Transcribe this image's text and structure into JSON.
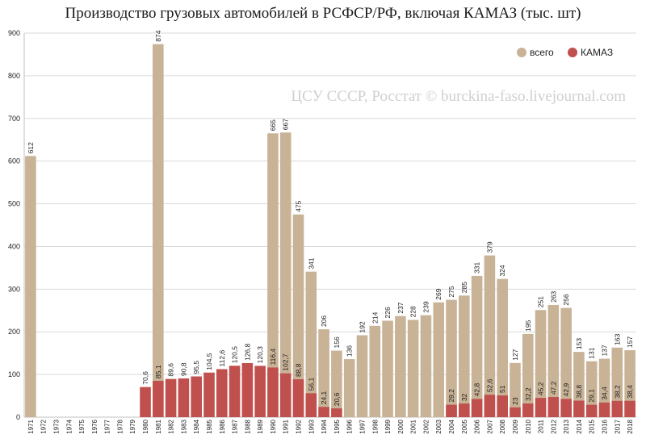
{
  "title": "Производство грузовых автомобилей в РСФСР/РФ, включая КАМАЗ (тыс. шт)",
  "watermark": "ЦСУ СССР, Росстат © burckina-faso.livejournal.com",
  "chart_data": {
    "type": "bar",
    "ylim": [
      0,
      900
    ],
    "yticks": [
      0,
      100,
      200,
      300,
      400,
      500,
      600,
      700,
      800,
      900
    ],
    "grid": true,
    "legend_position": "top-right",
    "categories": [
      "1971",
      "1972",
      "1973",
      "1974",
      "1975",
      "1976",
      "1977",
      "1978",
      "1979",
      "1980",
      "1981",
      "1982",
      "1983",
      "1984",
      "1985",
      "1986",
      "1987",
      "1988",
      "1989",
      "1990",
      "1991",
      "1992",
      "1993",
      "1994",
      "1995",
      "1996",
      "1997",
      "1998",
      "1999",
      "2000",
      "2001",
      "2002",
      "2003",
      "2004",
      "2005",
      "2006",
      "2007",
      "2008",
      "2009",
      "2010",
      "2011",
      "2012",
      "2013",
      "2014",
      "2015",
      "2016",
      "2017",
      "2018"
    ],
    "series": [
      {
        "name": "всего",
        "color": "#c9b397",
        "values": [
          612,
          null,
          null,
          null,
          null,
          null,
          null,
          null,
          null,
          null,
          874,
          null,
          null,
          null,
          null,
          null,
          null,
          null,
          null,
          665,
          667,
          475,
          341,
          206,
          156,
          136,
          192,
          214,
          226,
          237,
          228,
          239,
          269,
          275,
          285,
          331,
          379,
          324,
          127,
          195,
          251,
          263,
          256,
          153,
          131,
          137,
          163,
          157
        ],
        "labels": [
          "612",
          "",
          "",
          "",
          "",
          "",
          "",
          "",
          "",
          "",
          "874",
          "",
          "",
          "",
          "",
          "",
          "",
          "",
          "",
          "665",
          "667",
          "475",
          "341",
          "206",
          "156",
          "136",
          "192",
          "214",
          "226",
          "237",
          "228",
          "239",
          "269",
          "275",
          "285",
          "331",
          "379",
          "324",
          "127",
          "195",
          "251",
          "263",
          "256",
          "153",
          "131",
          "137",
          "163",
          "157"
        ]
      },
      {
        "name": "КАМАЗ",
        "color": "#c0504d",
        "values": [
          null,
          null,
          null,
          null,
          null,
          null,
          null,
          null,
          null,
          70.6,
          85.1,
          89.6,
          90.8,
          95.5,
          104.5,
          112.6,
          120.5,
          126.8,
          120.3,
          116.4,
          102.7,
          88.8,
          56.1,
          24.1,
          20.6,
          null,
          null,
          null,
          null,
          null,
          null,
          null,
          null,
          29.2,
          32,
          42.8,
          52.6,
          51,
          23,
          32.2,
          45.2,
          47.2,
          42.9,
          38.8,
          29.1,
          34.4,
          38.2,
          38.4
        ],
        "labels": [
          "",
          "",
          "",
          "",
          "",
          "",
          "",
          "",
          "",
          "70,6",
          "85,1",
          "89,6",
          "90,8",
          "95,5",
          "104,5",
          "112,6",
          "120,5",
          "126,8",
          "120,3",
          "116,4",
          "102,7",
          "88,8",
          "56,1",
          "24,1",
          "20,6",
          "",
          "",
          "",
          "",
          "",
          "",
          "",
          "",
          "29,2",
          "32",
          "42,8",
          "52,6",
          "51",
          "23",
          "32,2",
          "45,2",
          "47,2",
          "42,9",
          "38,8",
          "29,1",
          "34,4",
          "38,2",
          "38,4"
        ]
      }
    ]
  }
}
